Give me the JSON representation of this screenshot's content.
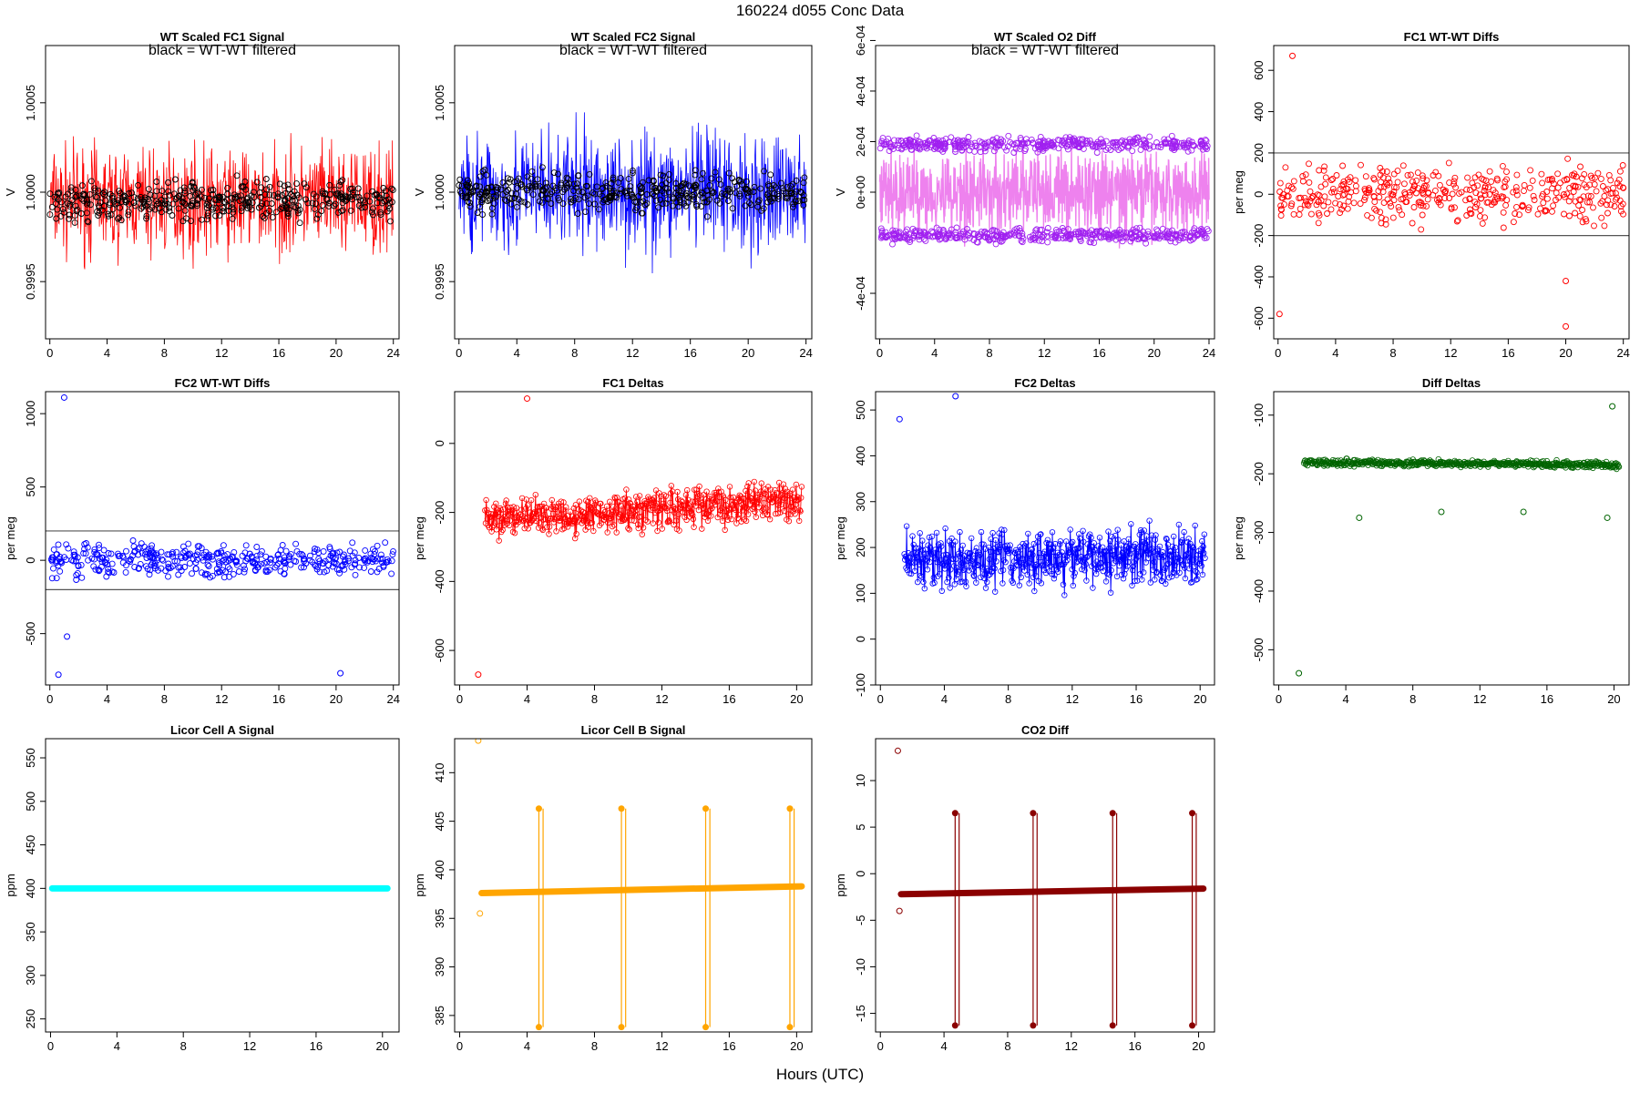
{
  "header": {
    "title": "160224    d055    Conc Data"
  },
  "footer": {
    "xlabel": "Hours (UTC)"
  },
  "chart_data": [
    {
      "id": "fc1-signal",
      "type": "line",
      "title": "WT Scaled FC1 Signal",
      "annotation": "black = WT-WT filtered",
      "ylabel": "V",
      "xlim": [
        -0.3,
        24.4
      ],
      "ylim": [
        0.99918,
        1.00082
      ],
      "xticks": [
        0,
        4,
        8,
        12,
        16,
        20,
        24
      ],
      "yticks": [
        0.9995,
        1.0,
        1.0005
      ],
      "ytick_labels": [
        "0.9995",
        "1.0000",
        "1.0005"
      ],
      "grid": false,
      "colors": {
        "series": "#ff0000",
        "overlay": "#000000"
      },
      "series": [
        {
          "style": "noise-line",
          "x": [
            0,
            24
          ],
          "y": [
            0.99995,
            0.99995
          ],
          "spread": 0.0004,
          "color": "#ff0000"
        },
        {
          "style": "points",
          "x": [
            0,
            24
          ],
          "y": [
            0.99995,
            0.99995
          ],
          "spread": 0.00012,
          "color": "#000000"
        }
      ]
    },
    {
      "id": "fc2-signal",
      "type": "line",
      "title": "WT Scaled FC2 Signal",
      "annotation": "black = WT-WT filtered",
      "ylabel": "V",
      "xlim": [
        -0.3,
        24.4
      ],
      "ylim": [
        0.99918,
        1.00082
      ],
      "xticks": [
        0,
        4,
        8,
        12,
        16,
        20,
        24
      ],
      "yticks": [
        0.9995,
        1.0,
        1.0005
      ],
      "ytick_labels": [
        "0.9995",
        "1.0000",
        "1.0005"
      ],
      "grid": false,
      "colors": {
        "series": "#0000ff",
        "overlay": "#000000"
      },
      "series": [
        {
          "style": "noise-line",
          "x": [
            0,
            24
          ],
          "y": [
            1.0,
            1.0
          ],
          "spread": 0.00045,
          "color": "#0000ff"
        },
        {
          "style": "points",
          "x": [
            0,
            24
          ],
          "y": [
            1.0,
            1.0
          ],
          "spread": 0.00012,
          "color": "#000000"
        }
      ]
    },
    {
      "id": "o2-diff",
      "type": "line",
      "title": "WT Scaled O2 Diff",
      "annotation": "black = WT-WT filtered",
      "ylabel": "V",
      "xlim": [
        -0.3,
        24.4
      ],
      "ylim": [
        -0.00058,
        0.00058
      ],
      "xticks": [
        0,
        4,
        8,
        12,
        16,
        20,
        24
      ],
      "yticks": [
        -0.0004,
        0.0,
        0.0002,
        0.0004,
        0.0006
      ],
      "ytick_labels": [
        "-4e-04",
        "0e+00",
        "2e-04",
        "4e-04",
        "6e-04"
      ],
      "grid": false,
      "colors": {
        "series": "#ee82ee",
        "points": "#a020f0",
        "overlay": "#000000"
      },
      "series": [
        {
          "style": "band",
          "x": [
            0,
            24
          ],
          "y": [
            0.0,
            0.0
          ],
          "spread": 0.00024,
          "color": "#ee82ee"
        },
        {
          "style": "points",
          "x": [
            0,
            24
          ],
          "y": [
            0.00019,
            0.00019
          ],
          "spread": 3e-05,
          "color": "#a020f0"
        },
        {
          "style": "points",
          "x": [
            0,
            24
          ],
          "y": [
            -0.00017,
            -0.00017
          ],
          "spread": 3e-05,
          "color": "#a020f0"
        }
      ]
    },
    {
      "id": "fc1-wtwt",
      "type": "scatter",
      "title": "FC1 WT-WT Diffs",
      "ylabel": "per meg",
      "xlim": [
        -0.3,
        24.4
      ],
      "ylim": [
        -700,
        720
      ],
      "xticks": [
        0,
        4,
        8,
        12,
        16,
        20,
        24
      ],
      "yticks": [
        -600,
        -400,
        -200,
        0,
        200,
        400,
        600
      ],
      "hlines": [
        200,
        -200
      ],
      "grid": false,
      "colors": {
        "points": "#ff0000"
      },
      "series": [
        {
          "style": "points",
          "x": [
            0,
            24
          ],
          "y": [
            0,
            0
          ],
          "spread": 150,
          "color": "#ff0000"
        }
      ],
      "outliers": [
        {
          "x": 1.0,
          "y": 670
        },
        {
          "x": 0.1,
          "y": -580
        },
        {
          "x": 20.0,
          "y": -420
        },
        {
          "x": 20.0,
          "y": -640
        }
      ]
    },
    {
      "id": "fc2-wtwt",
      "type": "scatter",
      "title": "FC2 WT-WT Diffs",
      "ylabel": "per meg",
      "xlim": [
        -0.3,
        24.4
      ],
      "ylim": [
        -850,
        1150
      ],
      "xticks": [
        0,
        4,
        8,
        12,
        16,
        20,
        24
      ],
      "yticks": [
        -500,
        0,
        500,
        1000
      ],
      "hlines": [
        200,
        -200
      ],
      "grid": false,
      "colors": {
        "points": "#0000ff"
      },
      "series": [
        {
          "style": "points",
          "x": [
            0,
            24
          ],
          "y": [
            0,
            0
          ],
          "spread": 120,
          "color": "#0000ff"
        }
      ],
      "outliers": [
        {
          "x": 1.0,
          "y": 1110
        },
        {
          "x": 0.6,
          "y": -780
        },
        {
          "x": 20.3,
          "y": -770
        },
        {
          "x": 1.2,
          "y": -520
        }
      ]
    },
    {
      "id": "fc1-deltas",
      "type": "line",
      "title": "FC1 Deltas",
      "ylabel": "per meg",
      "xlim": [
        -0.3,
        20.9
      ],
      "ylim": [
        -700,
        150
      ],
      "xticks": [
        0,
        4,
        8,
        12,
        16,
        20
      ],
      "yticks": [
        -600,
        -400,
        -200,
        0
      ],
      "grid": false,
      "colors": {
        "series": "#ff0000"
      },
      "series": [
        {
          "style": "line-points",
          "x": [
            1.5,
            20.3
          ],
          "y": [
            -220,
            -165
          ],
          "spread": 90,
          "color": "#ff0000"
        }
      ],
      "events": [
        {
          "x": 1.1,
          "y": -670
        },
        {
          "x": 4.0,
          "y": 130
        }
      ]
    },
    {
      "id": "fc2-deltas",
      "type": "line",
      "title": "FC2 Deltas",
      "ylabel": "per meg",
      "xlim": [
        -0.3,
        20.9
      ],
      "ylim": [
        -100,
        540
      ],
      "xticks": [
        0,
        4,
        8,
        12,
        16,
        20
      ],
      "yticks": [
        -100,
        0,
        100,
        200,
        300,
        400,
        500
      ],
      "grid": false,
      "colors": {
        "series": "#0000ff"
      },
      "series": [
        {
          "style": "line-points",
          "x": [
            1.5,
            20.3
          ],
          "y": [
            170,
            185
          ],
          "spread": 90,
          "color": "#0000ff"
        }
      ],
      "events": [
        {
          "x": 1.2,
          "y": 480
        },
        {
          "x": 4.7,
          "y": 530
        }
      ]
    },
    {
      "id": "diff-deltas",
      "type": "line",
      "title": "Diff Deltas",
      "ylabel": "per meg",
      "xlim": [
        -0.3,
        20.9
      ],
      "ylim": [
        -560,
        -60
      ],
      "xticks": [
        0,
        4,
        8,
        12,
        16,
        20
      ],
      "yticks": [
        -500,
        -400,
        -300,
        -200,
        -100
      ],
      "grid": false,
      "colors": {
        "series": "#006400"
      },
      "series": [
        {
          "style": "line-points",
          "x": [
            1.5,
            20.3
          ],
          "y": [
            -180,
            -185
          ],
          "spread": 8,
          "color": "#006400"
        }
      ],
      "events": [
        {
          "x": 1.2,
          "y": -540
        },
        {
          "x": 4.8,
          "y": -275
        },
        {
          "x": 9.7,
          "y": -265
        },
        {
          "x": 14.6,
          "y": -265
        },
        {
          "x": 19.6,
          "y": -275
        },
        {
          "x": 19.9,
          "y": -85
        }
      ]
    },
    {
      "id": "licor-a",
      "type": "line",
      "title": "Licor Cell A Signal",
      "ylabel": "ppm",
      "xlim": [
        -0.3,
        21.0
      ],
      "ylim": [
        235,
        572
      ],
      "xticks": [
        0,
        4,
        8,
        12,
        16,
        20
      ],
      "yticks": [
        250,
        300,
        350,
        400,
        450,
        500,
        550
      ],
      "grid": false,
      "colors": {
        "series": "#00ffff"
      },
      "series": [
        {
          "style": "thick-line",
          "x": [
            0.1,
            20.3
          ],
          "y": [
            400,
            400
          ],
          "spread": 0,
          "color": "#00ffff"
        }
      ]
    },
    {
      "id": "licor-b",
      "type": "line",
      "title": "Licor Cell B Signal",
      "ylabel": "ppm",
      "xlim": [
        -0.3,
        20.9
      ],
      "ylim": [
        383.3,
        413.5
      ],
      "xticks": [
        0,
        4,
        8,
        12,
        16,
        20
      ],
      "yticks": [
        385,
        390,
        395,
        400,
        405,
        410
      ],
      "grid": false,
      "colors": {
        "series": "#ffa500"
      },
      "series": [
        {
          "style": "thick-line",
          "x": [
            1.3,
            20.3
          ],
          "y": [
            397.6,
            398.3
          ],
          "spread": 0,
          "color": "#ffa500"
        }
      ],
      "spikes": [
        {
          "x": 4.7,
          "low": 383.8,
          "high": 406.3
        },
        {
          "x": 9.6,
          "low": 383.8,
          "high": 406.3
        },
        {
          "x": 14.6,
          "low": 383.8,
          "high": 406.3
        },
        {
          "x": 19.6,
          "low": 383.8,
          "high": 406.3
        }
      ],
      "events": [
        {
          "x": 1.1,
          "y": 413.3
        },
        {
          "x": 1.2,
          "y": 395.5
        }
      ]
    },
    {
      "id": "co2-diff",
      "type": "line",
      "title": "CO2 Diff",
      "ylabel": "ppm",
      "xlim": [
        -0.3,
        21.0
      ],
      "ylim": [
        -17,
        14.5
      ],
      "xticks": [
        0,
        4,
        8,
        12,
        16,
        20
      ],
      "yticks": [
        -15,
        -10,
        -5,
        0,
        5,
        10
      ],
      "grid": false,
      "colors": {
        "series": "#8b0000"
      },
      "series": [
        {
          "style": "thick-line",
          "x": [
            1.3,
            20.3
          ],
          "y": [
            -2.2,
            -1.6
          ],
          "spread": 0,
          "color": "#8b0000"
        }
      ],
      "spikes": [
        {
          "x": 4.7,
          "low": -16.3,
          "high": 6.5
        },
        {
          "x": 9.6,
          "low": -16.3,
          "high": 6.5
        },
        {
          "x": 14.6,
          "low": -16.3,
          "high": 6.5
        },
        {
          "x": 19.6,
          "low": -16.3,
          "high": 6.5
        }
      ],
      "events": [
        {
          "x": 1.1,
          "y": 13.2
        },
        {
          "x": 1.2,
          "y": -4.0
        }
      ]
    }
  ]
}
